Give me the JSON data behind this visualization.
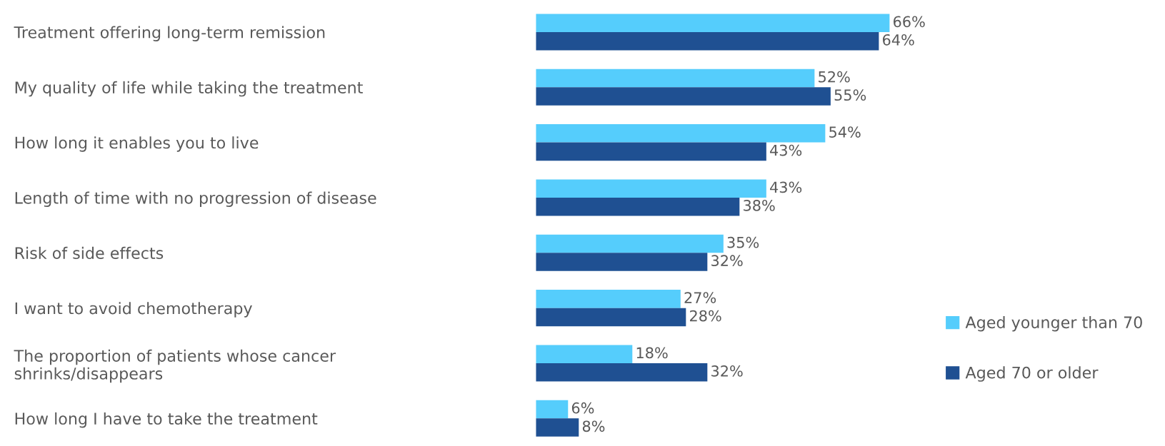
{
  "chart_data": {
    "type": "bar",
    "orientation": "horizontal",
    "categories": [
      "Treatment offering long-term remission",
      "My quality of life while taking the treatment",
      "How long it enables you to live",
      "Length of time with no progression of disease",
      "Risk of side effects",
      "I want to avoid chemotherapy",
      "The proportion of patients whose cancer\nshrinks/disappears",
      "How long I have to take the treatment"
    ],
    "series": [
      {
        "name": "Aged younger than 70",
        "color": "#55cdfc",
        "values": [
          66,
          52,
          54,
          43,
          35,
          27,
          18,
          6
        ],
        "value_labels": [
          "66%",
          "52%",
          "54%",
          "43%",
          "35%",
          "27%",
          "18%",
          "6%"
        ]
      },
      {
        "name": "Aged 70 or older",
        "color": "#1f5092",
        "values": [
          64,
          55,
          43,
          38,
          32,
          28,
          32,
          8
        ],
        "value_labels": [
          "64%",
          "55%",
          "43%",
          "38%",
          "32%",
          "28%",
          "32%",
          "8%"
        ]
      }
    ],
    "legend": "right",
    "grid": false
  }
}
